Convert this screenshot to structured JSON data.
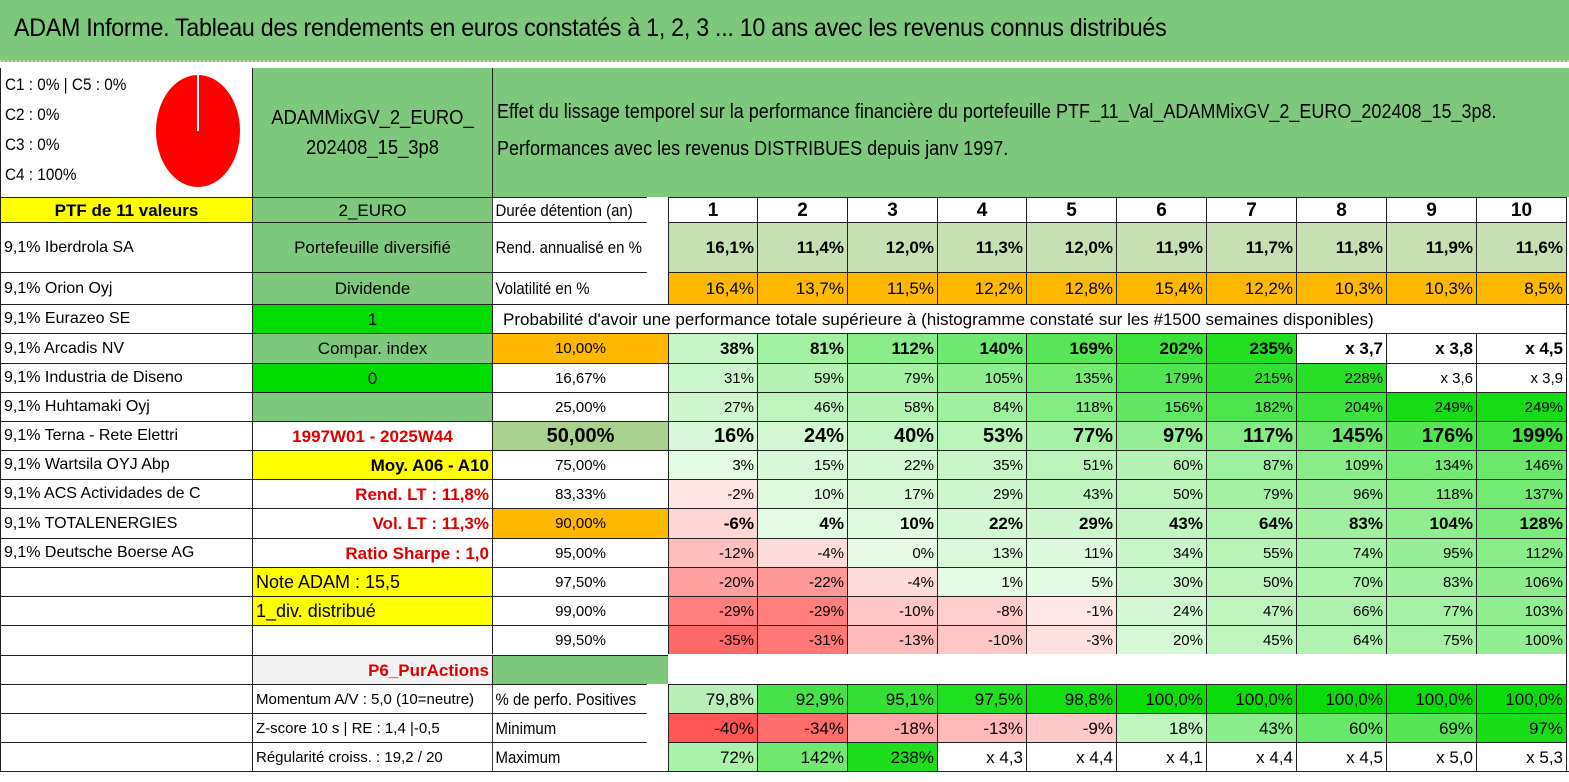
{
  "title": "ADAM Informe. Tableau des rendements en euros constatés à 1, 2, 3 ... 10 ans avec les revenus connus distribués",
  "colors": {
    "header_green": "#7dc87d",
    "yellow": "#ffff00",
    "bright_green": "#00dc00",
    "orange": "#ffb800",
    "pie_red": "#ff0000"
  },
  "composition": {
    "line1": "C1 : 0% | C5 : 0%",
    "line2": "C2 : 0%",
    "line3": "C3 : 0%",
    "line4": "C4 : 100%"
  },
  "portfolio_name": "ADAMMixGV_2_EURO_202408_15_3p8",
  "description": {
    "line1": "Effet du lissage temporel sur la performance financière du portefeuille PTF_11_Val_ADAMMixGV_2_EURO_202408_15_3p8.",
    "line2": "Performances avec les revenus DISTRIBUES depuis janv 1997."
  },
  "ptf_label": "PTF de 11 valeurs",
  "currency": "2_EURO",
  "holdings": [
    "9,1% Iberdrola SA",
    "9,1% Orion Oyj",
    "9,1% Eurazeo SE",
    "9,1% Arcadis NV",
    "9,1% Industria de Diseno",
    "9,1% Huhtamaki Oyj",
    "9,1% Terna - Rete Elettri",
    "9,1% Wartsila OYJ Abp",
    "9,1% ACS Actividades de C",
    "9,1% TOTALENERGIES",
    "9,1% Deutsche Boerse AG"
  ],
  "side_info": {
    "portfolio_type": "Portefeuille diversifié",
    "dividend_label": "Dividende",
    "dividend_value": "1",
    "compar_label": "Compar. index",
    "compar_value": "0",
    "period": "1997W01 - 2025W44",
    "moy": "Moy. A06 - A10",
    "rend_lt": "Rend. LT : 11,8%",
    "vol_lt": "Vol. LT : 11,3%",
    "sharpe": "Ratio Sharpe : 1,0",
    "note": "Note ADAM : 15,5",
    "div": "1_div. distribué",
    "p6": "P6_PurActions",
    "momentum": "Momentum A/V : 5,0 (10=neutre)",
    "zscore": "Z-score 10 s | RE : 1,4 |-0,5",
    "regularite": "Régularité croiss. : 19,2 / 20"
  },
  "table": {
    "duration_label": "Durée détention (an)",
    "years": [
      "1",
      "2",
      "3",
      "4",
      "5",
      "6",
      "7",
      "8",
      "9",
      "10"
    ],
    "rend_label": "Rend. annualisé en %",
    "rend": [
      "16,1%",
      "11,4%",
      "12,0%",
      "11,3%",
      "12,0%",
      "11,9%",
      "11,7%",
      "11,8%",
      "11,9%",
      "11,6%"
    ],
    "vol_label": "Volatilité en %",
    "vol": [
      "16,4%",
      "13,7%",
      "11,5%",
      "12,2%",
      "12,8%",
      "15,4%",
      "12,2%",
      "10,3%",
      "10,3%",
      "8,5%"
    ],
    "prob_title": "Probabilité d'avoir une performance totale supérieure à (histogramme constaté sur les #1500 semaines disponibles)",
    "prob_rows": [
      {
        "p": "10,00%",
        "v": [
          "38%",
          "81%",
          "112%",
          "140%",
          "169%",
          "202%",
          "235%",
          "x 3,7",
          "x 3,8",
          "x 4,5"
        ]
      },
      {
        "p": "16,67%",
        "v": [
          "31%",
          "59%",
          "79%",
          "105%",
          "135%",
          "179%",
          "215%",
          "228%",
          "x 3,6",
          "x 3,9"
        ]
      },
      {
        "p": "25,00%",
        "v": [
          "27%",
          "46%",
          "58%",
          "84%",
          "118%",
          "156%",
          "182%",
          "204%",
          "249%",
          "249%"
        ]
      },
      {
        "p": "50,00%",
        "v": [
          "16%",
          "24%",
          "40%",
          "53%",
          "77%",
          "97%",
          "117%",
          "145%",
          "176%",
          "199%"
        ]
      },
      {
        "p": "75,00%",
        "v": [
          "3%",
          "15%",
          "22%",
          "35%",
          "51%",
          "60%",
          "87%",
          "109%",
          "134%",
          "146%"
        ]
      },
      {
        "p": "83,33%",
        "v": [
          "-2%",
          "10%",
          "17%",
          "29%",
          "43%",
          "50%",
          "79%",
          "96%",
          "118%",
          "137%"
        ]
      },
      {
        "p": "90,00%",
        "v": [
          "-6%",
          "4%",
          "10%",
          "22%",
          "29%",
          "43%",
          "64%",
          "83%",
          "104%",
          "128%"
        ]
      },
      {
        "p": "95,00%",
        "v": [
          "-12%",
          "-4%",
          "0%",
          "13%",
          "11%",
          "34%",
          "55%",
          "74%",
          "95%",
          "112%"
        ]
      },
      {
        "p": "97,50%",
        "v": [
          "-20%",
          "-22%",
          "-4%",
          "1%",
          "5%",
          "30%",
          "50%",
          "70%",
          "83%",
          "106%"
        ]
      },
      {
        "p": "99,00%",
        "v": [
          "-29%",
          "-29%",
          "-10%",
          "-8%",
          "-1%",
          "24%",
          "47%",
          "66%",
          "77%",
          "103%"
        ]
      },
      {
        "p": "99,50%",
        "v": [
          "-35%",
          "-31%",
          "-13%",
          "-10%",
          "-3%",
          "20%",
          "45%",
          "64%",
          "75%",
          "100%"
        ]
      }
    ],
    "pos_label": "% de perfo. Positives",
    "pos": [
      "79,8%",
      "92,9%",
      "95,1%",
      "97,5%",
      "98,8%",
      "100,0%",
      "100,0%",
      "100,0%",
      "100,0%",
      "100,0%"
    ],
    "min_label": "Minimum",
    "min": [
      "-40%",
      "-34%",
      "-18%",
      "-13%",
      "-9%",
      "18%",
      "43%",
      "60%",
      "69%",
      "97%"
    ],
    "max_label": "Maximum",
    "max": [
      "72%",
      "142%",
      "238%",
      "x 4,3",
      "x 4,4",
      "x 4,1",
      "x 4,4",
      "x 4,5",
      "x 5,0",
      "x 5,3"
    ]
  }
}
